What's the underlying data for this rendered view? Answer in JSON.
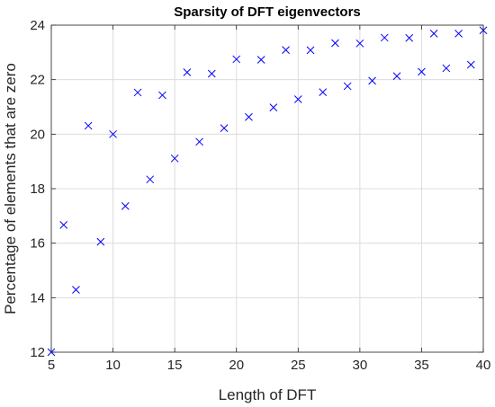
{
  "chart_data": {
    "type": "scatter",
    "title": "Sparsity of DFT eigenvectors",
    "xlabel": "Length of DFT",
    "ylabel": "Percentage of elements that are zero",
    "xlim": [
      5,
      40
    ],
    "ylim": [
      12,
      24
    ],
    "xticks": [
      "5",
      "10",
      "15",
      "20",
      "25",
      "30",
      "35",
      "40"
    ],
    "yticks": [
      "12",
      "14",
      "16",
      "18",
      "20",
      "22",
      "24"
    ],
    "grid": true,
    "marker": "x",
    "marker_color": "#0000ff",
    "x": [
      5,
      6,
      7,
      8,
      9,
      10,
      11,
      12,
      13,
      14,
      15,
      16,
      17,
      18,
      19,
      20,
      21,
      22,
      23,
      24,
      25,
      26,
      27,
      28,
      29,
      30,
      31,
      32,
      33,
      34,
      35,
      36,
      37,
      38,
      39,
      40
    ],
    "y": [
      12.0,
      16.67,
      14.29,
      20.31,
      16.05,
      20.0,
      17.36,
      21.53,
      18.34,
      21.43,
      19.11,
      22.27,
      19.72,
      22.22,
      20.22,
      22.75,
      20.63,
      22.73,
      20.98,
      23.09,
      21.28,
      23.08,
      21.54,
      23.34,
      21.76,
      23.33,
      21.96,
      23.54,
      22.13,
      23.53,
      22.29,
      23.69,
      22.42,
      23.69,
      22.55,
      23.81
    ]
  }
}
